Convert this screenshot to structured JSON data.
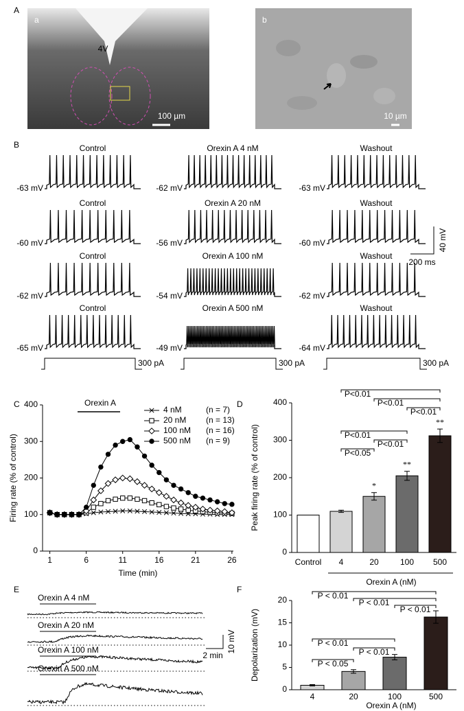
{
  "panel_a": {
    "label": "A",
    "image_a": {
      "label": "a",
      "structure": "4V",
      "scale": "100 µm"
    },
    "image_b": {
      "label": "b",
      "scale": "10 µm"
    }
  },
  "panel_b": {
    "label": "B",
    "rows": [
      [
        {
          "title": "Control",
          "potential": "-63 mV"
        },
        {
          "title": "Orexin A 4 nM",
          "potential": "-62 mV"
        },
        {
          "title": "Washout",
          "potential": "-63 mV"
        }
      ],
      [
        {
          "title": "Control",
          "potential": "-60 mV"
        },
        {
          "title": "Orexin A 20 nM",
          "potential": "-56 mV"
        },
        {
          "title": "Washout",
          "potential": "-60 mV"
        }
      ],
      [
        {
          "title": "Control",
          "potential": "-62 mV"
        },
        {
          "title": "Orexin A 100 nM",
          "potential": "-54 mV"
        },
        {
          "title": "Washout",
          "potential": "-62 mV"
        }
      ],
      [
        {
          "title": "Control",
          "potential": "-65 mV"
        },
        {
          "title": "Orexin A 500 nM",
          "potential": "-49 mV"
        },
        {
          "title": "Washout",
          "potential": "-64 mV"
        }
      ]
    ],
    "currents": [
      "300 pA",
      "300 pA",
      "300 pA"
    ],
    "scale_voltage": "40 mV",
    "scale_time": "200 ms"
  },
  "panel_e": {
    "label": "E",
    "traces": [
      "Orexin A 4 nM",
      "Orexin A 20 nM",
      "Orexin A 100 nM",
      "Orexin A 500 nM"
    ],
    "scale_voltage": "10 mV",
    "scale_time": "2 min"
  },
  "chart_data": [
    {
      "type": "line",
      "panel_label": "C",
      "annotation": "Orexin A",
      "x_label": "Time (min)",
      "y_label": "Firing rate (% of control)",
      "x": [
        1,
        2,
        3,
        4,
        5,
        6,
        7,
        8,
        9,
        10,
        11,
        12,
        13,
        14,
        15,
        16,
        17,
        18,
        19,
        20,
        21,
        22,
        23,
        24,
        25,
        26
      ],
      "xlim": [
        0,
        26.2
      ],
      "xticks": [
        1,
        6,
        11,
        16,
        21,
        26
      ],
      "ylim": [
        0,
        400
      ],
      "yticks": [
        0,
        100,
        200,
        300,
        400
      ],
      "series": [
        {
          "name": "4 nM",
          "n_label": "(n = 7)",
          "marker": "cross",
          "color": "#000000",
          "values": [
            105,
            100,
            100,
            100,
            100,
            102,
            105,
            107,
            108,
            109,
            110,
            110,
            109,
            108,
            107,
            106,
            105,
            104,
            103,
            102,
            102,
            101,
            101,
            100,
            100,
            100
          ]
        },
        {
          "name": "20 nM",
          "n_label": "(n = 13)",
          "marker": "square",
          "color": "#000000",
          "values": [
            105,
            100,
            100,
            100,
            100,
            105,
            120,
            130,
            138,
            142,
            145,
            145,
            142,
            138,
            132,
            127,
            122,
            118,
            115,
            112,
            110,
            108,
            106,
            105,
            104,
            103
          ]
        },
        {
          "name": "100 nM",
          "n_label": "(n = 16)",
          "marker": "diamond",
          "color": "#000000",
          "values": [
            105,
            100,
            100,
            100,
            100,
            110,
            140,
            165,
            185,
            195,
            200,
            198,
            190,
            180,
            170,
            160,
            150,
            140,
            132,
            125,
            120,
            115,
            112,
            110,
            108,
            105
          ]
        },
        {
          "name": "500 nM",
          "n_label": "(n = 9)",
          "marker": "circle",
          "color": "#000000",
          "values": [
            105,
            100,
            100,
            100,
            100,
            120,
            180,
            230,
            265,
            290,
            300,
            305,
            285,
            260,
            235,
            215,
            195,
            180,
            170,
            160,
            150,
            145,
            140,
            135,
            130,
            128
          ]
        }
      ]
    },
    {
      "type": "bar",
      "panel_label": "D",
      "x_label": "Orexin A (nM)",
      "y_label": "Peak firing rate (% of control)",
      "categories": [
        "Control",
        "4",
        "20",
        "100",
        "500"
      ],
      "values": [
        100,
        110,
        150,
        205,
        312
      ],
      "errors": [
        0,
        3,
        10,
        12,
        18
      ],
      "colors": [
        "#ffffff",
        "#d4d4d4",
        "#a6a6a6",
        "#6b6b6b",
        "#2b1d1a"
      ],
      "significance": [
        null,
        null,
        "*",
        "**",
        "**"
      ],
      "ylim": [
        0,
        400
      ],
      "yticks": [
        0,
        100,
        200,
        300,
        400
      ],
      "comparisons": [
        {
          "label": "P<0.01",
          "categories": [
            "4",
            "500"
          ]
        },
        {
          "label": "P<0.01",
          "categories": [
            "20",
            "500"
          ]
        },
        {
          "label": "P<0.01",
          "categories": [
            "100",
            "500"
          ]
        },
        {
          "label": "P<0.01",
          "categories": [
            "4",
            "100"
          ]
        },
        {
          "label": "P<0.01",
          "categories": [
            "20",
            "100"
          ]
        },
        {
          "label": "P<0.05",
          "categories": [
            "4",
            "20"
          ]
        }
      ]
    },
    {
      "type": "bar",
      "panel_label": "F",
      "x_label": "Orexin A (nM)",
      "y_label": "Depolarization (mV)",
      "categories": [
        "4",
        "20",
        "100",
        "500"
      ],
      "values": [
        1.0,
        4.1,
        7.3,
        16.3
      ],
      "errors": [
        0.15,
        0.4,
        0.6,
        1.4
      ],
      "colors": [
        "#d4d4d4",
        "#a6a6a6",
        "#6b6b6b",
        "#2b1d1a"
      ],
      "ylim": [
        0,
        20
      ],
      "yticks": [
        0,
        5,
        10,
        15,
        20
      ],
      "comparisons": [
        {
          "label": "P < 0.01",
          "categories": [
            "4",
            "500"
          ]
        },
        {
          "label": "P < 0.01",
          "categories": [
            "20",
            "500"
          ]
        },
        {
          "label": "P < 0.01",
          "categories": [
            "100",
            "500"
          ]
        },
        {
          "label": "P < 0.01",
          "categories": [
            "4",
            "100"
          ]
        },
        {
          "label": "P < 0.01",
          "categories": [
            "20",
            "100"
          ]
        },
        {
          "label": "P < 0.05",
          "categories": [
            "4",
            "20"
          ]
        }
      ]
    }
  ]
}
